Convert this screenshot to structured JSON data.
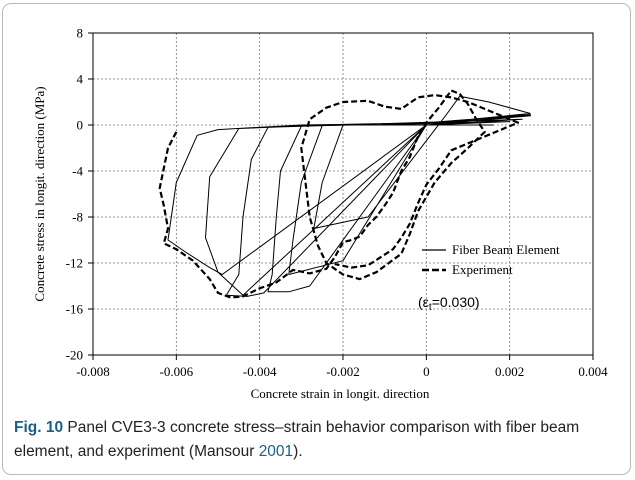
{
  "chart_data": {
    "type": "line",
    "xlabel": "Concrete strain in longit. direction",
    "ylabel": "Concrete stress in longit. direction (MPa)",
    "xlim": [
      -0.008,
      0.004
    ],
    "ylim": [
      -20,
      8
    ],
    "xticks": [
      "-0.008",
      "-0.006",
      "-0.004",
      "-0.002",
      "0",
      "0.002",
      "0.004"
    ],
    "xtick_values": [
      -0.008,
      -0.006,
      -0.004,
      -0.002,
      0,
      0.002,
      0.004
    ],
    "yticks": [
      "8",
      "4",
      "0",
      "-4",
      "-8",
      "-12",
      "-16",
      "-20"
    ],
    "ytick_values": [
      8,
      4,
      0,
      -4,
      -8,
      -12,
      -16,
      -20
    ],
    "grid": "dotted",
    "legend_position": "right",
    "annotation": {
      "text": "(εt=0.030)",
      "main": "(ε",
      "sub": "t",
      "rest": "=0.030)"
    },
    "series": [
      {
        "name": "Fiber Beam Element",
        "style": "solid",
        "color": "#000000",
        "points": [
          [
            0.0025,
            1.0
          ],
          [
            0.0005,
            0.3
          ],
          [
            -0.001,
            0.1
          ],
          [
            -0.003,
            0.0
          ],
          [
            -0.005,
            -0.4
          ],
          [
            -0.0055,
            -0.9
          ],
          [
            -0.006,
            -5.0
          ],
          [
            -0.0062,
            -10.0
          ],
          [
            -0.0058,
            -11.0
          ],
          [
            -0.0052,
            -12.4
          ],
          [
            -0.0049,
            -13.0
          ],
          [
            0.0,
            0.0
          ],
          [
            0.0025,
            0.9
          ],
          [
            0.0,
            0.2
          ],
          [
            -0.002,
            0.05
          ],
          [
            -0.0045,
            -0.3
          ],
          [
            -0.0052,
            -4.5
          ],
          [
            -0.0053,
            -9.8
          ],
          [
            -0.005,
            -12.8
          ],
          [
            -0.0044,
            -14.8
          ],
          [
            0.0,
            0.0
          ],
          [
            0.0025,
            0.8
          ],
          [
            0.0,
            0.1
          ],
          [
            -0.002,
            0.0
          ],
          [
            -0.0038,
            -0.2
          ],
          [
            -0.0042,
            -3.0
          ],
          [
            -0.0044,
            -8.0
          ],
          [
            -0.0045,
            -13.0
          ],
          [
            -0.0048,
            -14.8
          ],
          [
            -0.0043,
            -14.9
          ],
          [
            -0.0039,
            -14.6
          ],
          [
            0.0,
            0.0
          ],
          [
            0.0023,
            0.5
          ],
          [
            -0.003,
            -0.1
          ],
          [
            -0.0035,
            -4.0
          ],
          [
            -0.0036,
            -8.0
          ],
          [
            -0.0037,
            -13.0
          ],
          [
            -0.0038,
            -14.5
          ],
          [
            -0.0033,
            -14.5
          ],
          [
            -0.0028,
            -14.0
          ],
          [
            0.0,
            0.0
          ],
          [
            0.002,
            0.3
          ],
          [
            -0.0025,
            -0.05
          ],
          [
            -0.003,
            -5.0
          ],
          [
            -0.0032,
            -10.0
          ],
          [
            -0.0033,
            -13.0
          ],
          [
            -0.002,
            -11.8
          ],
          [
            0.0,
            0.0
          ],
          [
            0.0016,
            0.0
          ],
          [
            -0.002,
            0.0
          ],
          [
            -0.0025,
            -5.0
          ],
          [
            -0.0027,
            -9.0
          ],
          [
            -0.0014,
            -8.0
          ],
          [
            0.0005,
            1.0
          ],
          [
            0.0008,
            2.5
          ],
          [
            0.0015,
            2.0
          ],
          [
            0.0025,
            1.0
          ]
        ]
      },
      {
        "name": "Experiment",
        "style": "dashed",
        "color": "#000000",
        "points": [
          [
            -0.006,
            -0.6
          ],
          [
            -0.0062,
            -2.0
          ],
          [
            -0.0064,
            -5.5
          ],
          [
            -0.0063,
            -7.0
          ],
          [
            -0.0062,
            -9.0
          ],
          [
            -0.0063,
            -10.3
          ],
          [
            -0.006,
            -10.8
          ],
          [
            -0.0056,
            -11.8
          ],
          [
            -0.0052,
            -13.4
          ],
          [
            -0.005,
            -14.6
          ],
          [
            -0.0047,
            -15.0
          ],
          [
            -0.0044,
            -14.9
          ],
          [
            -0.004,
            -14.2
          ],
          [
            -0.0036,
            -13.7
          ],
          [
            -0.0032,
            -12.6
          ],
          [
            -0.0028,
            -12.9
          ],
          [
            -0.0024,
            -12.5
          ],
          [
            -0.0022,
            -11.5
          ],
          [
            -0.002,
            -10.2
          ],
          [
            -0.0018,
            -10.0
          ],
          [
            -0.0016,
            -9.7
          ],
          [
            -0.0014,
            -8.7
          ],
          [
            -0.0012,
            -8.0
          ],
          [
            -0.001,
            -7.0
          ],
          [
            -0.0008,
            -5.9
          ],
          [
            -0.0006,
            -4.0
          ],
          [
            -0.0004,
            -2.8
          ],
          [
            -0.0002,
            -1.0
          ],
          [
            0.0,
            0.2
          ],
          [
            0.0003,
            1.5
          ],
          [
            0.0006,
            3.0
          ],
          [
            0.0008,
            2.7
          ],
          [
            0.001,
            1.8
          ],
          [
            0.0012,
            0.5
          ],
          [
            0.0014,
            -0.6
          ],
          [
            0.001,
            -2.0
          ],
          [
            0.0006,
            -3.3
          ],
          [
            0.0002,
            -5.0
          ],
          [
            -0.0002,
            -7.5
          ],
          [
            -0.0004,
            -9.5
          ],
          [
            -0.0006,
            -11.2
          ],
          [
            -0.0009,
            -12.0
          ],
          [
            -0.0012,
            -12.8
          ],
          [
            -0.0016,
            -13.4
          ],
          [
            -0.002,
            -13.0
          ],
          [
            -0.0024,
            -12.0
          ],
          [
            -0.0026,
            -10.5
          ],
          [
            -0.0028,
            -8.0
          ],
          [
            -0.0029,
            -5.0
          ],
          [
            -0.003,
            -2.0
          ],
          [
            -0.0028,
            0.5
          ],
          [
            -0.0024,
            1.5
          ],
          [
            -0.002,
            2.0
          ],
          [
            -0.0014,
            2.1
          ],
          [
            -0.001,
            1.6
          ],
          [
            -0.0006,
            1.4
          ],
          [
            -0.0002,
            2.4
          ],
          [
            0.0002,
            2.6
          ],
          [
            0.0006,
            2.4
          ],
          [
            0.001,
            2.0
          ],
          [
            0.0014,
            1.4
          ],
          [
            0.0018,
            0.8
          ],
          [
            0.0022,
            0.2
          ],
          [
            0.0018,
            -0.4
          ],
          [
            0.0014,
            -1.0
          ],
          [
            0.001,
            -1.6
          ],
          [
            0.0006,
            -2.2
          ],
          [
            0.0003,
            -3.8
          ],
          [
            0.0,
            -5.2
          ],
          [
            -0.0002,
            -6.8
          ],
          [
            -0.0004,
            -8.6
          ],
          [
            -0.0006,
            -9.8
          ],
          [
            -0.0008,
            -10.8
          ],
          [
            -0.0011,
            -11.5
          ],
          [
            -0.0014,
            -12.2
          ],
          [
            -0.0018,
            -12.4
          ],
          [
            -0.0022,
            -12.1
          ]
        ]
      }
    ]
  },
  "caption": {
    "lead": "Fig. 10",
    "text": " Panel CVE3-3 concrete stress–strain behavior comparison with fiber beam element, and experiment (Mansour ",
    "ref": "2001",
    "tail": ")."
  }
}
